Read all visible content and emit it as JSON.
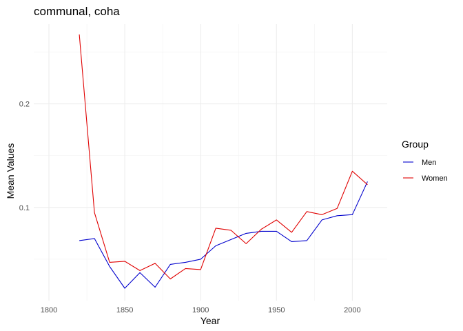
{
  "chart_data": {
    "type": "line",
    "title": "communal, coha",
    "xlabel": "Year",
    "ylabel": "Mean Values",
    "xlim": [
      1790,
      2023
    ],
    "ylim": [
      0.01,
      0.277
    ],
    "x_ticks": [
      1800,
      1850,
      1900,
      1950,
      2000
    ],
    "y_ticks": [
      0.1,
      0.2
    ],
    "y_tick_labels": [
      "0.1",
      "0.2"
    ],
    "grid": true,
    "legend": {
      "title": "Group",
      "position": "right"
    },
    "series": [
      {
        "name": "Men",
        "color": "#0000cd",
        "x": [
          1820,
          1830,
          1840,
          1850,
          1860,
          1870,
          1880,
          1890,
          1900,
          1910,
          1920,
          1930,
          1940,
          1950,
          1960,
          1970,
          1980,
          1990,
          2000,
          2010
        ],
        "y": [
          0.068,
          0.07,
          0.043,
          0.022,
          0.037,
          0.023,
          0.045,
          0.047,
          0.05,
          0.063,
          0.069,
          0.075,
          0.077,
          0.077,
          0.067,
          0.068,
          0.088,
          0.092,
          0.093,
          0.125
        ]
      },
      {
        "name": "Women",
        "color": "#e00000",
        "x": [
          1820,
          1830,
          1840,
          1850,
          1860,
          1870,
          1880,
          1890,
          1900,
          1910,
          1920,
          1930,
          1940,
          1950,
          1960,
          1970,
          1980,
          1990,
          2000,
          2010
        ],
        "y": [
          0.267,
          0.095,
          0.047,
          0.048,
          0.039,
          0.046,
          0.031,
          0.041,
          0.04,
          0.08,
          0.078,
          0.065,
          0.079,
          0.088,
          0.076,
          0.096,
          0.093,
          0.099,
          0.135,
          0.122
        ]
      }
    ]
  }
}
